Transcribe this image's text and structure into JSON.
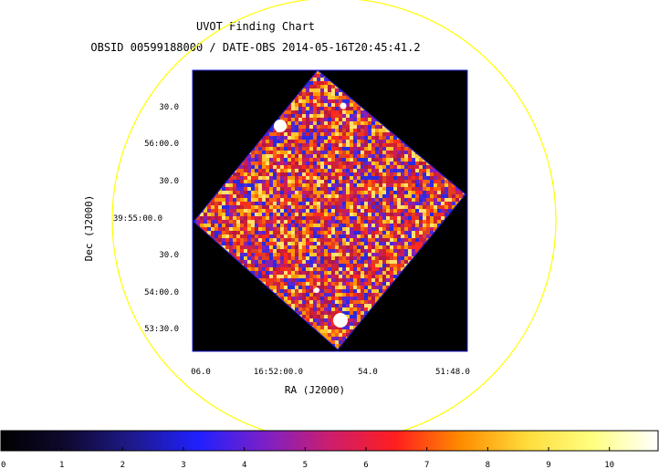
{
  "title": "UVOT Finding Chart",
  "subtitle": "OBSID 00599188000 / DATE-OBS 2014-05-16T20:45:41.2",
  "colors": {
    "background": "#ffffff",
    "image_background": "#000000",
    "circle": "#ffff00",
    "frame": "#1a1acc"
  },
  "axes": {
    "xlabel": "RA (J2000)",
    "ylabel": "Dec (J2000)",
    "xticks": [
      "06.0",
      "16:52:00.0",
      "54.0",
      "51:48.0"
    ],
    "yticks": [
      "30.0",
      "56:00.0",
      "30.0",
      "39:55:00.0",
      "30.0",
      "54:00.0",
      "53:30.0"
    ]
  },
  "colorbar": {
    "ticks": [
      "0",
      "1",
      "2",
      "3",
      "4",
      "5",
      "6",
      "7",
      "8",
      "9",
      "10"
    ],
    "stops": [
      "#000000",
      "#0f0a30",
      "#1e1a8c",
      "#2020ff",
      "#7a20c8",
      "#cc1e6e",
      "#ff1e1e",
      "#ff8c00",
      "#ffdc3c",
      "#ffff80",
      "#ffffff"
    ]
  },
  "sources": [
    "bright-source-1",
    "bright-source-2",
    "bright-source-3",
    "bright-source-4"
  ]
}
